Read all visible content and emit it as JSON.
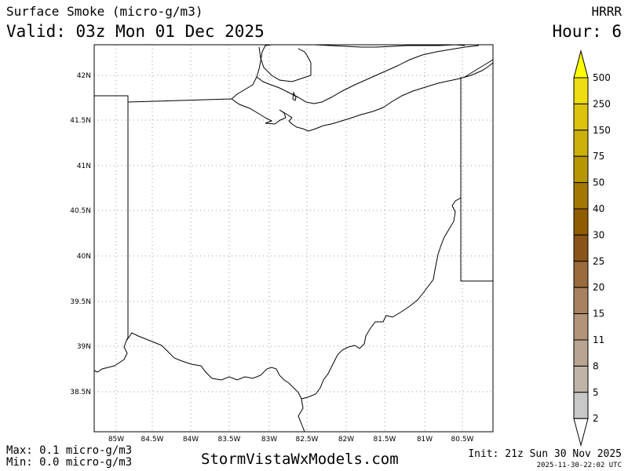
{
  "header": {
    "title": "Surface Smoke (micro-g/m3)",
    "valid": "Valid: 03z Mon 01 Dec 2025",
    "model": "HRRR",
    "hour": "Hour: 6"
  },
  "map": {
    "lat_labels": [
      "42N",
      "41.5N",
      "41N",
      "40.5N",
      "40N",
      "39.5N",
      "39N",
      "38.5N"
    ],
    "lon_labels": [
      "85W",
      "84.5W",
      "84W",
      "83.5W",
      "83W",
      "82.5W",
      "82W",
      "81.5W",
      "81W",
      "80.5W"
    ],
    "line_color": "#000000",
    "grid_color": "#9a9a9a"
  },
  "colorbar": {
    "labels": [
      "500",
      "250",
      "150",
      "75",
      "50",
      "40",
      "30",
      "25",
      "20",
      "15",
      "11",
      "8",
      "5",
      "2"
    ],
    "colors": [
      "#ffff00",
      "#eedd10",
      "#dcc40c",
      "#ccb00a",
      "#b89600",
      "#a27800",
      "#8f5c00",
      "#8a5418",
      "#9a6a3c",
      "#a88260",
      "#b29478",
      "#b8a490",
      "#c0b4a8",
      "#c8c8c8",
      "#d0d0d0"
    ]
  },
  "footer": {
    "max": "Max: 0.1 micro-g/m3",
    "min": "Min: 0.0 micro-g/m3",
    "brand": "StormVistaWxModels.com",
    "init": "Init: 21z Sun 30 Nov 2025",
    "stamp": "2025-11-30-22:02 UTC"
  }
}
